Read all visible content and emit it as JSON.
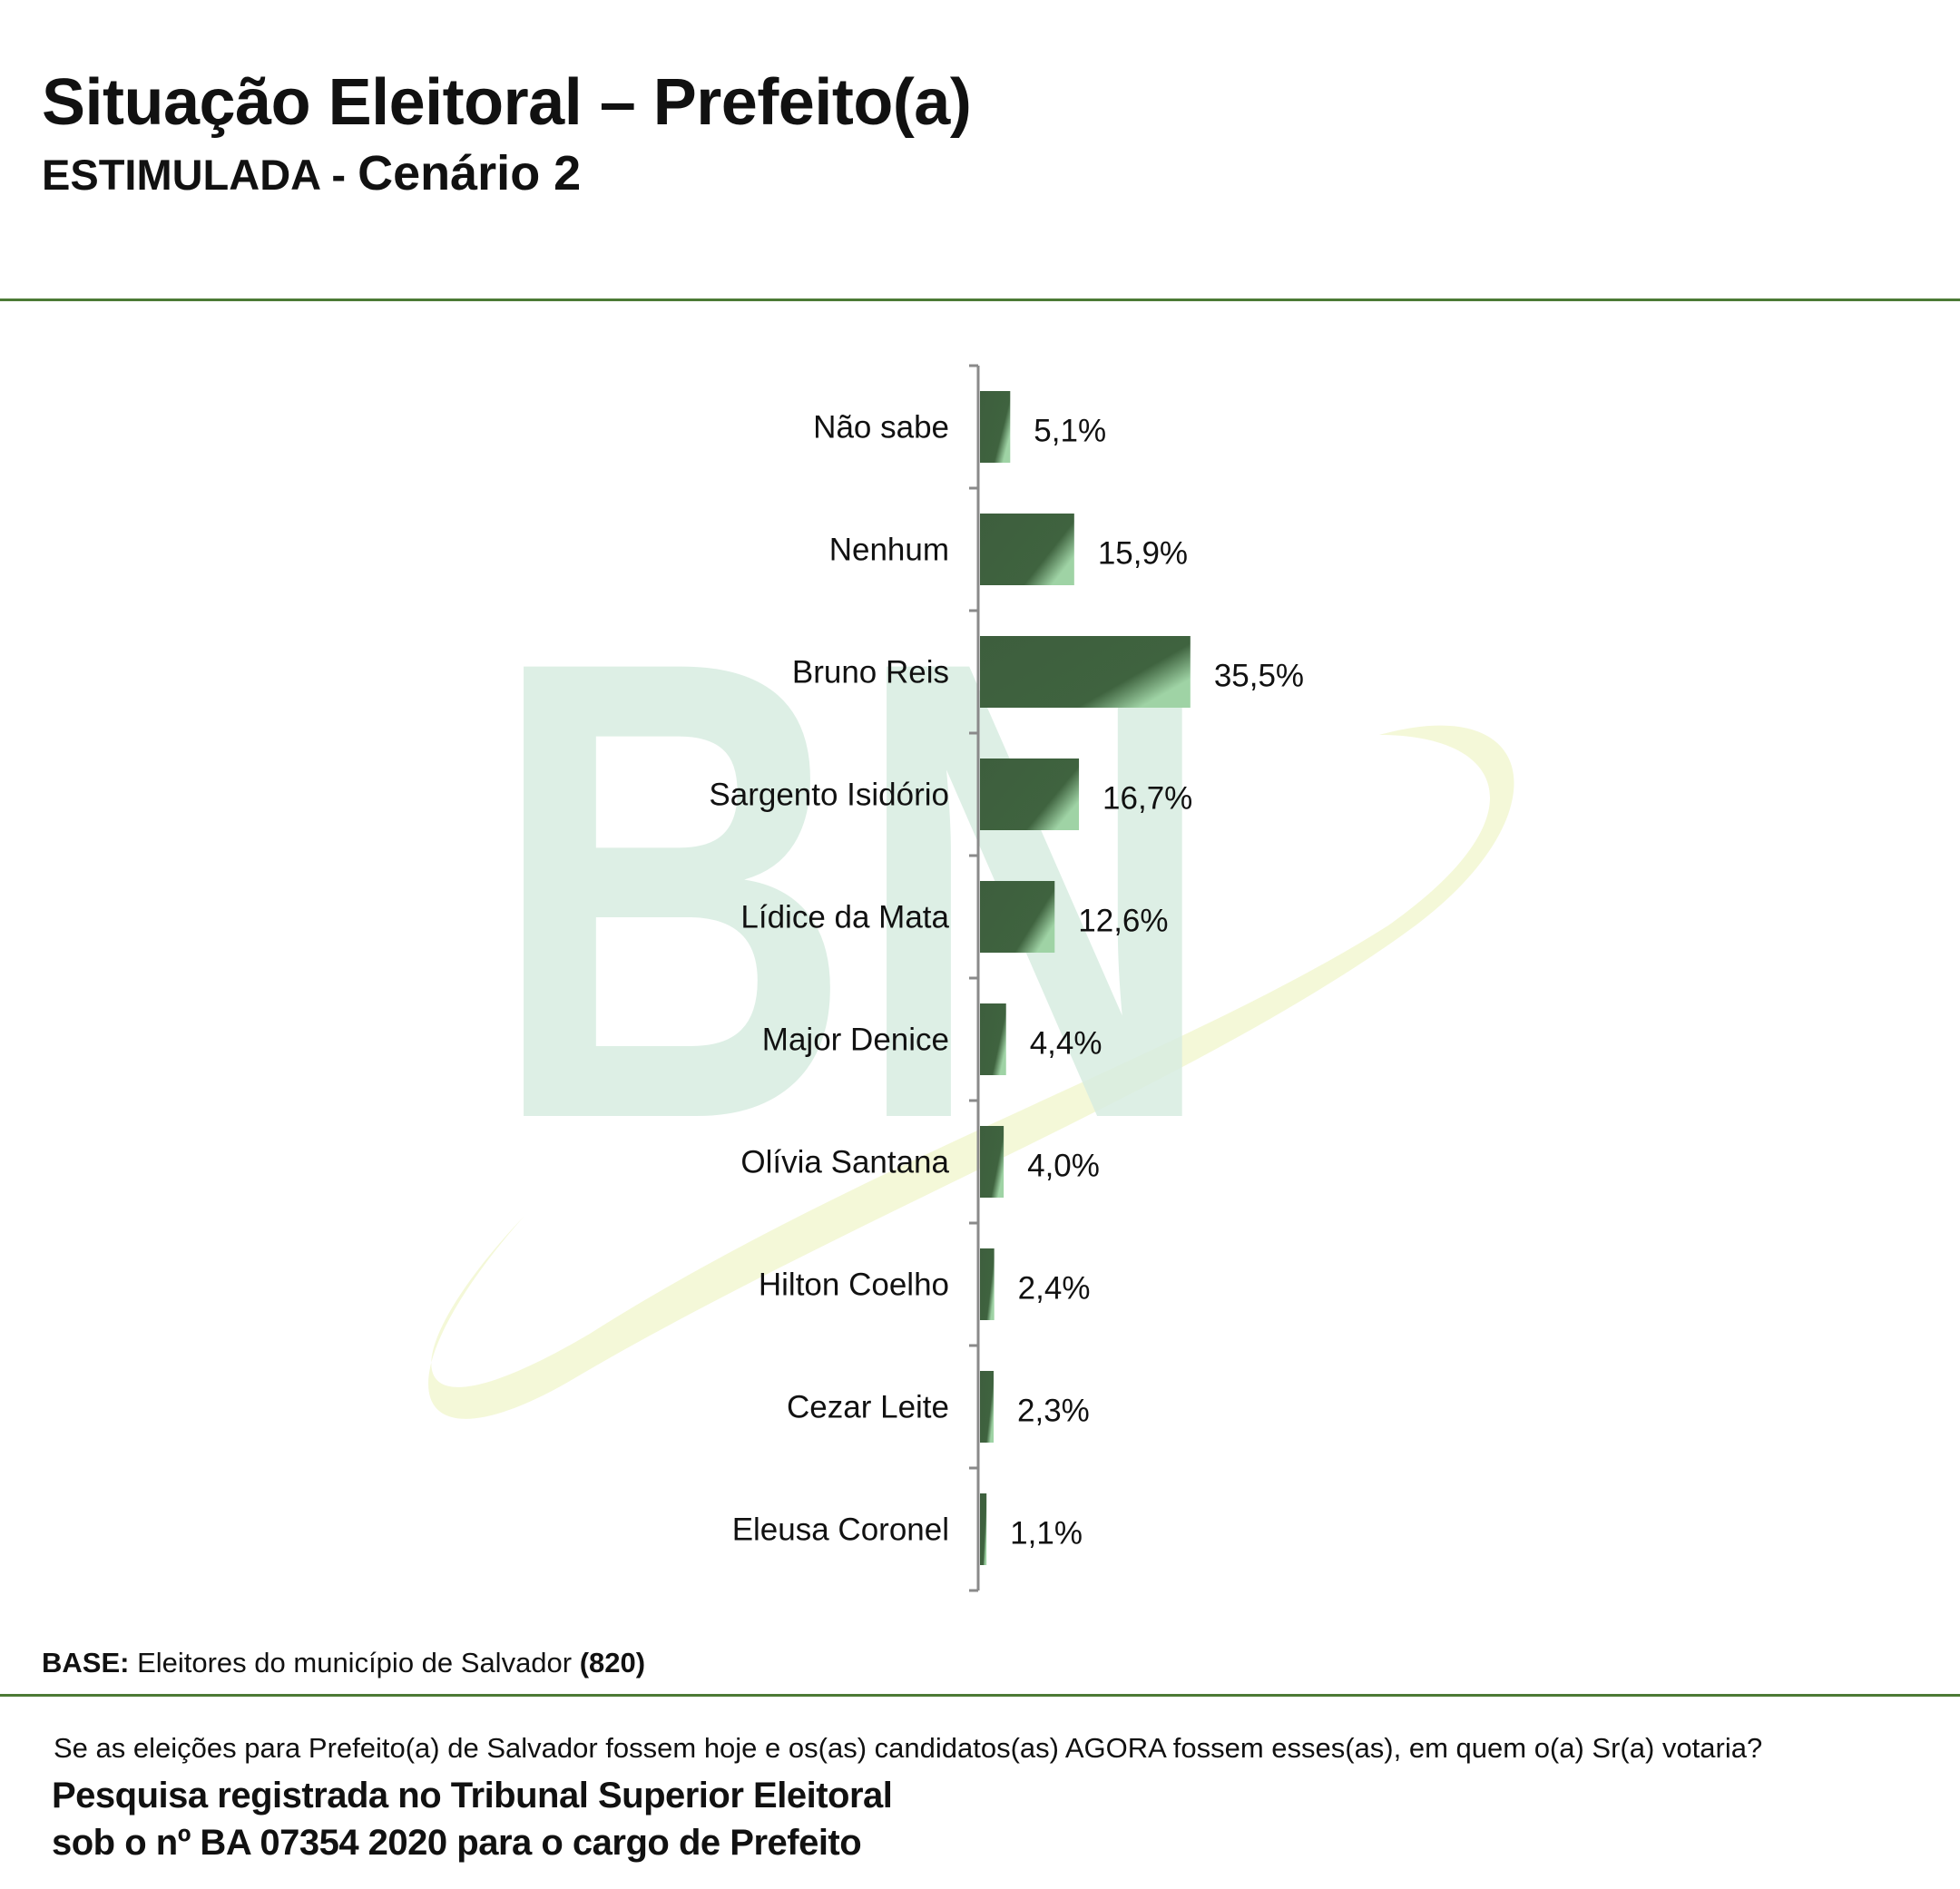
{
  "header": {
    "title": "Situação Eleitoral – Prefeito(a)",
    "subtitle_a": "ESTIMULADA - ",
    "subtitle_b": "Cenário 2"
  },
  "colors": {
    "accent": "#4c7a35",
    "bar_dark": "#3d5e3d",
    "bar_light": "#9fd3a5",
    "watermark_green": "#d7ece0",
    "watermark_yellow": "#f4f8d8"
  },
  "watermark": {
    "text": "BN"
  },
  "chart_data": {
    "type": "bar",
    "orientation": "horizontal",
    "categories": [
      "Não sabe",
      "Nenhum",
      "Bruno Reis",
      "Sargento Isidório",
      "Lídice da Mata",
      "Major Denice",
      "Olívia Santana",
      "Hilton Coelho",
      "Cezar Leite",
      "Eleusa Coronel"
    ],
    "values": [
      5.1,
      15.9,
      35.5,
      16.7,
      12.6,
      4.4,
      4.0,
      2.4,
      2.3,
      1.1
    ],
    "value_labels": [
      "5,1%",
      "15,9%",
      "35,5%",
      "16,7%",
      "12,6%",
      "4,4%",
      "4,0%",
      "2,4%",
      "2,3%",
      "1,1%"
    ],
    "unit": "%",
    "grid": false,
    "legend": "none"
  },
  "footer": {
    "base_label": "BASE:",
    "base_text": " Eleitores do município de Salvador ",
    "base_count": "(820)",
    "question": "Se as eleições para Prefeito(a) de Salvador fossem hoje e os(as) candidatos(as) AGORA fossem esses(as), em quem o(a) Sr(a) votaria?",
    "registro_line1": "Pesquisa registrada no Tribunal Superior Eleitoral",
    "registro_line2": "sob o nº BA 07354 2020 para o cargo de Prefeito"
  }
}
